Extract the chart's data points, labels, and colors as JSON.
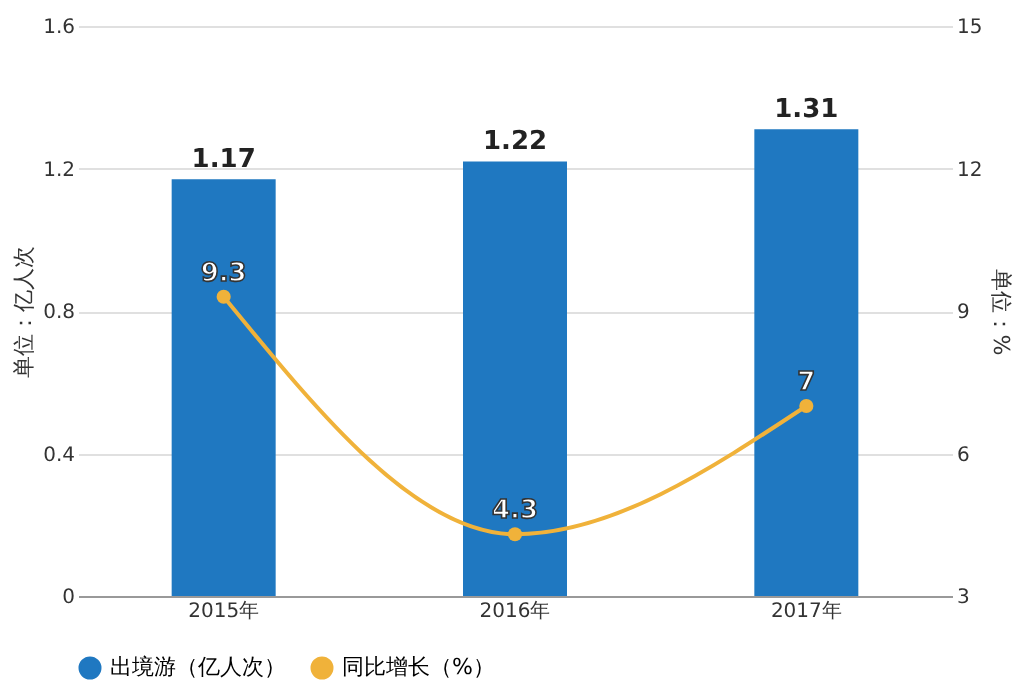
{
  "chart_data": {
    "type": "bar",
    "categories": [
      "2015年",
      "2016年",
      "2017年"
    ],
    "ylabel": "单位：亿人次",
    "y2label": "单位：%",
    "ylim": [
      0,
      1.6
    ],
    "yticks": [
      0,
      0.4,
      0.8,
      1.2,
      1.6
    ],
    "y2lim": [
      3,
      15
    ],
    "y2ticks": [
      3,
      6,
      9,
      12,
      15
    ],
    "series": [
      {
        "name": "出境游（亿人次）",
        "color": "#1f78c1",
        "values": [
          1.17,
          1.22,
          1.31
        ]
      },
      {
        "name": "同比增长（%）",
        "type": "line",
        "axis": "y2",
        "color": "#f0b23a",
        "values": [
          9.3,
          4.3,
          7
        ]
      }
    ],
    "data_labels": true,
    "grid": "y",
    "legend": "bottom",
    "marker": "circle",
    "line_style": "solid"
  }
}
